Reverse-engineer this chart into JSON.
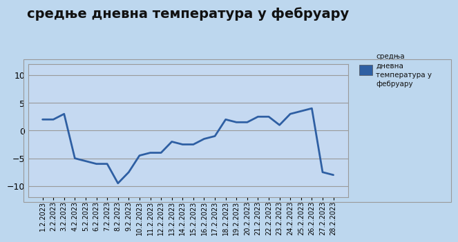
{
  "title": "средње дневна температура у фебруару",
  "legend_label": "средња\nдневна\nтемпература у\nфебруару",
  "dates": [
    "1.2.2023",
    "2.2.2023",
    "3.2.2023",
    "4.2.2023",
    "5.2.2023",
    "6.2.2023",
    "7.2.2023",
    "8.2.2023",
    "9.2.2023",
    "10.2.2023",
    "11.2.2023",
    "12.2.2023",
    "13.2.2023",
    "14.2.2023",
    "15.2.2023",
    "16.2.2023",
    "17.2.2023",
    "18.2.2023",
    "19.2.2023",
    "20.2.2023",
    "21.2.2023",
    "22.2.2023",
    "23.2.2023",
    "24.2.2023",
    "25.2.2023",
    "26.2.2023",
    "27.2.2023",
    "28.2.2023"
  ],
  "temperatures": [
    2.0,
    2.0,
    3.0,
    -5.0,
    -5.5,
    -6.0,
    -6.0,
    -9.5,
    -7.5,
    -4.5,
    -4.0,
    -4.0,
    -2.0,
    -2.5,
    -2.5,
    -1.5,
    -1.0,
    2.0,
    1.5,
    1.5,
    2.5,
    2.5,
    1.0,
    3.0,
    3.5,
    4.0,
    -7.5,
    -8.0
  ],
  "ylim": [
    -12,
    12
  ],
  "yticks": [
    -10,
    -5,
    0,
    5,
    10
  ],
  "line_color": "#2E5FA3",
  "line_width": 2.0,
  "bg_color": "#BDD7EE",
  "plot_bg_color": "#C5D9F1",
  "grid_color": "#999999",
  "title_fontsize": 14,
  "axis_fontsize": 9,
  "tick_fontsize": 7
}
